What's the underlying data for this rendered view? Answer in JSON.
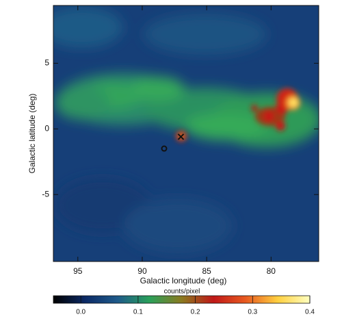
{
  "chart_data": {
    "type": "heatmap",
    "xlabel": "Galactic longitude (deg)",
    "ylabel": "Galactic latitude (deg)",
    "xlim": [
      96.9,
      76.3
    ],
    "xticks": [
      95,
      90,
      85,
      80
    ],
    "ylim": [
      -10.1,
      9.4
    ],
    "yticks": [
      5,
      0,
      -5
    ],
    "markers": [
      {
        "symbol": "x",
        "x": 87.0,
        "y": -0.6,
        "color": "#111111"
      },
      {
        "symbol": "circle",
        "x": 88.3,
        "y": -1.5,
        "color": "#111111"
      }
    ],
    "colorbar": {
      "label": "counts/pixel",
      "lim": [
        -0.048,
        0.4
      ],
      "ticks": [
        {
          "value": 0.0,
          "label": "0.0"
        },
        0.1,
        0.2,
        0.3,
        0.4
      ],
      "colormap": [
        "#000000",
        "#0c2a66",
        "#1e5a8a",
        "#2aa05a",
        "#8a7a20",
        "#c01818",
        "#e85a20",
        "#ffd040",
        "#ffffc0"
      ]
    }
  }
}
